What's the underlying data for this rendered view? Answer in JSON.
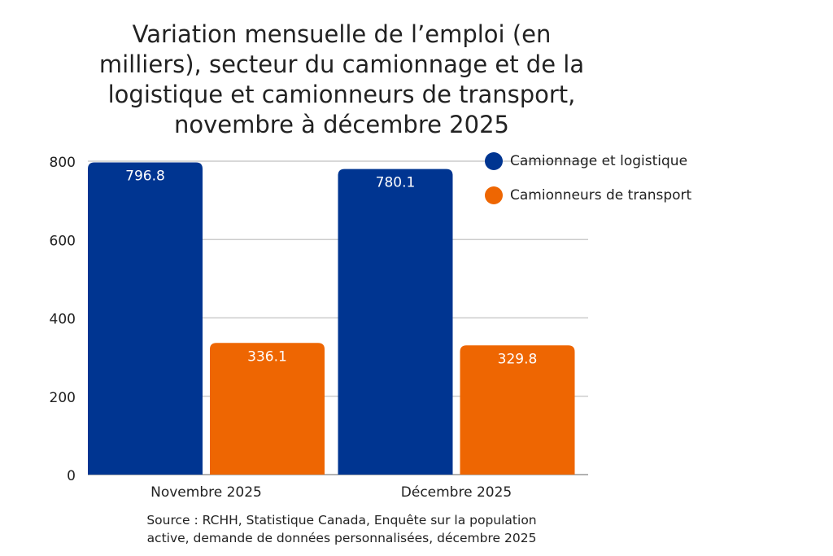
{
  "chart_data": {
    "type": "bar",
    "title": "Variation mensuelle de l’emploi (en milliers), secteur du camionnage et de la logistique et camionneurs de transport, novembre à décembre 2025",
    "title_lines": [
      "Variation mensuelle de l’emploi (en",
      "milliers), secteur du camionnage et de la",
      "logistique et camionneurs de transport,",
      "novembre à décembre 2025"
    ],
    "xlabel": "",
    "ylabel": "",
    "categories": [
      "Novembre 2025",
      "Décembre 2025"
    ],
    "series": [
      {
        "name": "Camionnage et logistique",
        "color": "#003591",
        "values": [
          796.8,
          780.1
        ],
        "labels": [
          "796.8",
          "780.1"
        ]
      },
      {
        "name": "Camionneurs de transport",
        "color": "#ee6602",
        "values": [
          336.1,
          329.8
        ],
        "labels": [
          "336.1",
          "329.8"
        ]
      }
    ],
    "ylim": [
      0,
      800
    ],
    "yticks": [
      0,
      200,
      400,
      600,
      800
    ],
    "ytick_labels": [
      "0",
      "200",
      "400",
      "600",
      "800"
    ],
    "grid": true,
    "legend_position": "top-right",
    "source_lines": [
      "Source : RCHH, Statistique Canada, Enquête sur la population",
      "active, demande de données personnalisées, décembre 2025"
    ]
  }
}
